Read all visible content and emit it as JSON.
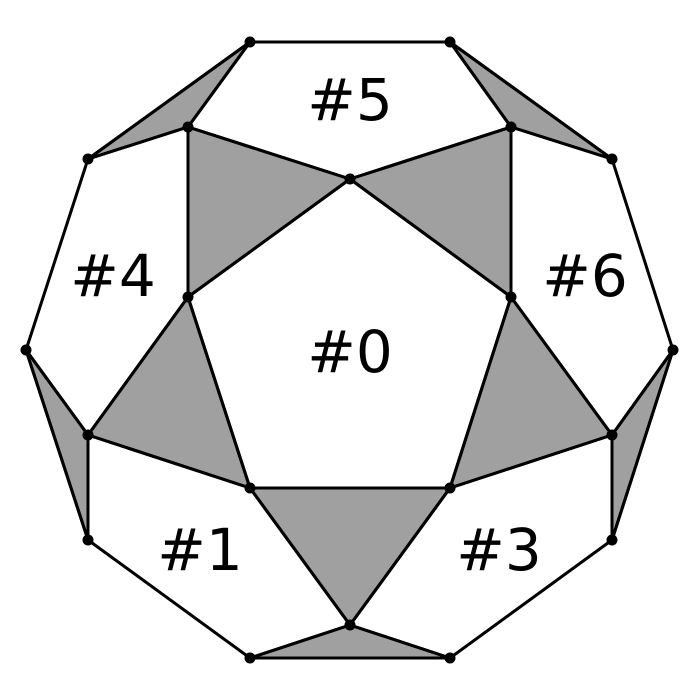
{
  "diagram": {
    "title": "",
    "description_kind": "polyhedron net / tiling with labeled faces",
    "colors": {
      "edge": "#000000",
      "shaded_face": "#a0a0a0",
      "open_face": "#ffffff",
      "vertex": "#000000"
    },
    "face_labels": {
      "center": "#0",
      "bottom_left": "#1",
      "bottom_right": "#3",
      "left": "#4",
      "top": "#5",
      "right": "#6"
    },
    "shaded_triangle_count": 10,
    "vertex_count": 20
  }
}
